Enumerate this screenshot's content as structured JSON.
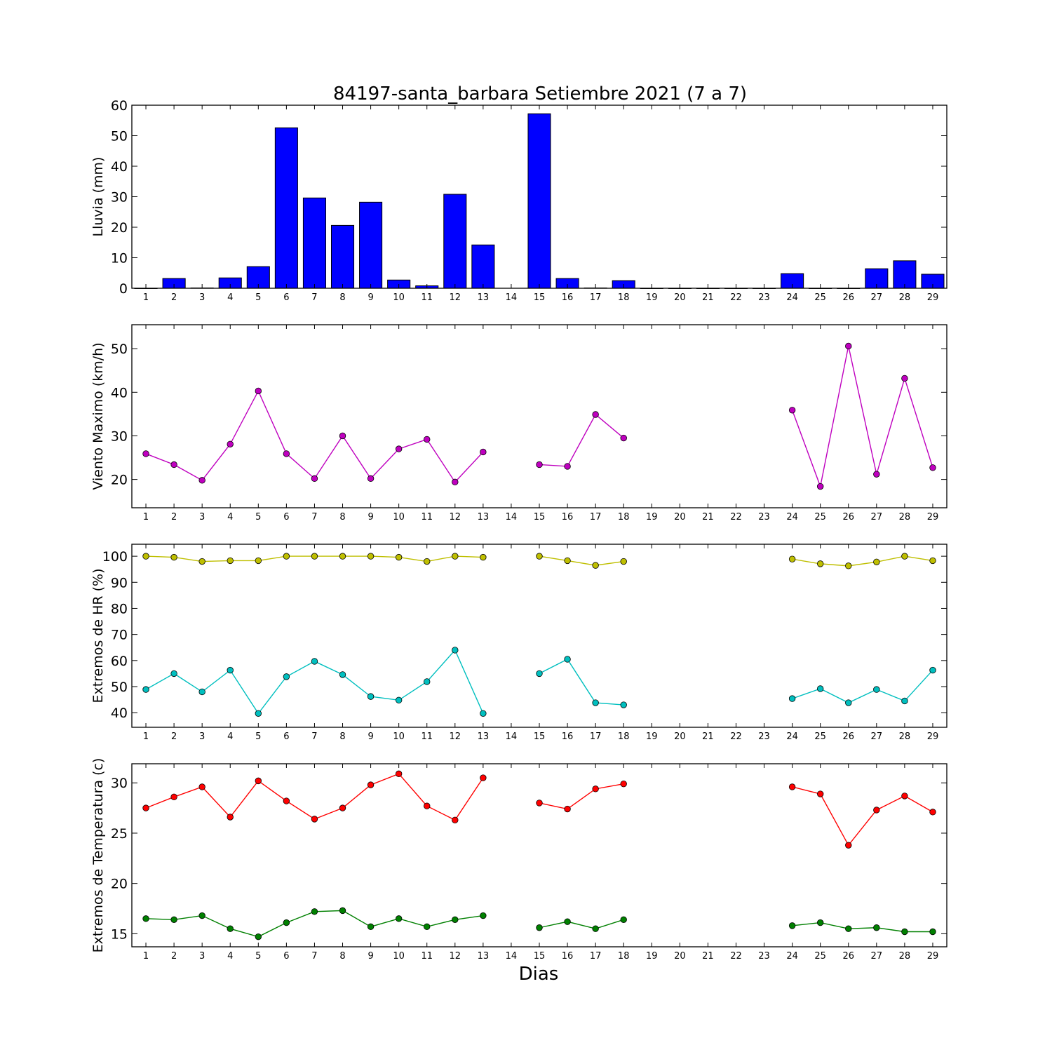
{
  "figure": {
    "title": "84197-santa_barbara Setiembre 2021  (7 a 7)",
    "xlabel": "Dias"
  },
  "chart_data": [
    {
      "type": "bar",
      "ylabel": "Lluvia (mm)",
      "ylim": [
        0,
        60
      ],
      "yticks": [
        0,
        10,
        20,
        30,
        40,
        50,
        60
      ],
      "categories": [
        1,
        2,
        3,
        4,
        5,
        6,
        7,
        8,
        9,
        10,
        11,
        12,
        13,
        14,
        15,
        16,
        17,
        18,
        19,
        20,
        21,
        22,
        23,
        24,
        25,
        26,
        27,
        28,
        29
      ],
      "series": [
        {
          "color": "#0000ff",
          "values": [
            0,
            3.2,
            0.1,
            3.4,
            7.1,
            52.6,
            29.6,
            20.6,
            28.2,
            2.7,
            0.8,
            30.8,
            14.2,
            null,
            57.2,
            3.2,
            0.1,
            2.5,
            0,
            0,
            0,
            0,
            0,
            4.8,
            0,
            0,
            6.4,
            9.0,
            4.6
          ]
        }
      ],
      "grid": false
    },
    {
      "type": "line",
      "ylabel": "Viento Maximo (km/h)",
      "ylim": [
        13.5,
        55.5
      ],
      "yticks": [
        20,
        30,
        40,
        50
      ],
      "x": [
        1,
        2,
        3,
        4,
        5,
        6,
        7,
        8,
        9,
        10,
        11,
        12,
        13,
        14,
        15,
        16,
        17,
        18,
        19,
        20,
        21,
        22,
        23,
        24,
        25,
        26,
        27,
        28,
        29
      ],
      "series": [
        {
          "color": "#bf00bf",
          "values": [
            25.9,
            23.4,
            19.8,
            28.1,
            40.3,
            25.9,
            20.2,
            30.0,
            20.2,
            27.0,
            29.2,
            19.4,
            26.3,
            null,
            23.4,
            23.0,
            34.9,
            29.5,
            null,
            null,
            null,
            null,
            null,
            35.9,
            18.4,
            50.6,
            21.2,
            43.2,
            22.7
          ]
        }
      ],
      "grid": false
    },
    {
      "type": "line",
      "ylabel": "Extremos de HR (%)",
      "ylim": [
        34.4,
        104.6
      ],
      "yticks": [
        40,
        50,
        60,
        70,
        80,
        90,
        100
      ],
      "x": [
        1,
        2,
        3,
        4,
        5,
        6,
        7,
        8,
        9,
        10,
        11,
        12,
        13,
        14,
        15,
        16,
        17,
        18,
        19,
        20,
        21,
        22,
        23,
        24,
        25,
        26,
        27,
        28,
        29
      ],
      "series": [
        {
          "color": "#bfbf00",
          "values": [
            100,
            99.6,
            98.0,
            98.3,
            98.3,
            100,
            100,
            100,
            100,
            99.6,
            98.0,
            100,
            99.6,
            null,
            100,
            98.3,
            96.5,
            98.0,
            null,
            null,
            null,
            null,
            null,
            98.9,
            97.1,
            96.3,
            97.8,
            100,
            98.3
          ]
        },
        {
          "color": "#00bfbf",
          "values": [
            48.9,
            55.0,
            48.0,
            56.3,
            39.7,
            53.8,
            59.7,
            54.6,
            46.2,
            44.8,
            51.9,
            64.0,
            39.7,
            null,
            55.0,
            60.5,
            43.8,
            43.0,
            null,
            null,
            null,
            null,
            null,
            45.4,
            49.2,
            43.8,
            48.9,
            44.5,
            56.3
          ]
        }
      ],
      "grid": false
    },
    {
      "type": "line",
      "ylabel": "Extremos de Temperatura (c)",
      "ylim": [
        13.7,
        31.9
      ],
      "yticks": [
        15,
        20,
        25,
        30
      ],
      "x": [
        1,
        2,
        3,
        4,
        5,
        6,
        7,
        8,
        9,
        10,
        11,
        12,
        13,
        14,
        15,
        16,
        17,
        18,
        19,
        20,
        21,
        22,
        23,
        24,
        25,
        26,
        27,
        28,
        29
      ],
      "series": [
        {
          "color": "#ff0000",
          "values": [
            27.5,
            28.6,
            29.6,
            26.6,
            30.2,
            28.2,
            26.4,
            27.5,
            29.8,
            30.9,
            27.7,
            26.3,
            30.5,
            null,
            28.0,
            27.4,
            29.4,
            29.9,
            null,
            null,
            null,
            null,
            null,
            29.6,
            28.9,
            23.8,
            27.3,
            28.7,
            27.1
          ]
        },
        {
          "color": "#008000",
          "values": [
            16.5,
            16.4,
            16.8,
            15.5,
            14.7,
            16.1,
            17.2,
            17.3,
            15.7,
            16.5,
            15.7,
            16.4,
            16.8,
            null,
            15.6,
            16.2,
            15.5,
            16.4,
            null,
            null,
            null,
            null,
            null,
            15.8,
            16.1,
            15.5,
            15.6,
            15.2,
            15.2
          ]
        }
      ],
      "grid": false
    }
  ]
}
